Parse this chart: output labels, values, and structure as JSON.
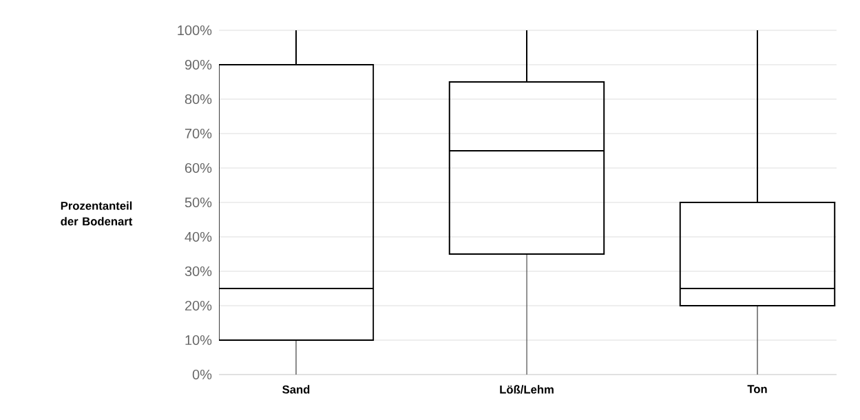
{
  "chart_data": {
    "type": "box",
    "ylabel": "Prozentanteil der Bodenart",
    "categories": [
      "Sand",
      "Löß/Lehm",
      "Ton"
    ],
    "boxes": [
      {
        "low": 0,
        "q1": 10,
        "median": 25,
        "q3": 90,
        "high": 100
      },
      {
        "low": 0,
        "q1": 35,
        "median": 65,
        "q3": 85,
        "high": 100
      },
      {
        "low": 0,
        "q1": 20,
        "median": 25,
        "q3": 50,
        "high": 100
      }
    ],
    "ylim": [
      0,
      100
    ],
    "yticks": [
      {
        "value": 0,
        "label": "0%"
      },
      {
        "value": 10,
        "label": "10%"
      },
      {
        "value": 20,
        "label": "20%"
      },
      {
        "value": 30,
        "label": "30%"
      },
      {
        "value": 40,
        "label": "40%"
      },
      {
        "value": 50,
        "label": "50%"
      },
      {
        "value": 60,
        "label": "60%"
      },
      {
        "value": 70,
        "label": "70%"
      },
      {
        "value": 80,
        "label": "80%"
      },
      {
        "value": 90,
        "label": "90%"
      },
      {
        "value": 100,
        "label": "100%"
      }
    ],
    "grid": "y"
  }
}
